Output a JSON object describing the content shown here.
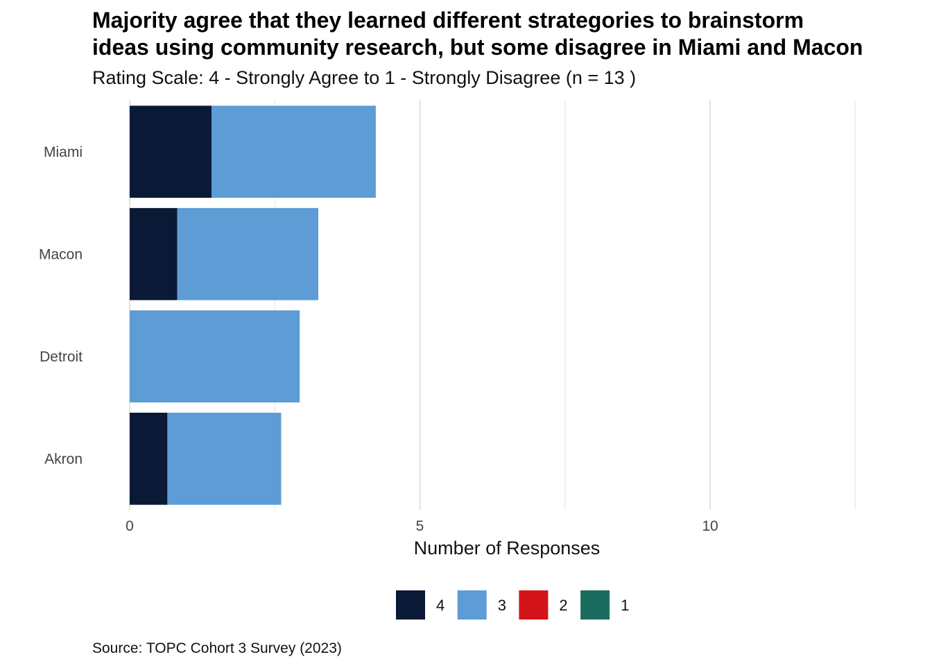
{
  "chart_data": {
    "type": "bar",
    "orientation": "horizontal",
    "stacked": true,
    "title_lines": [
      "Majority agree that they learned different strategories to brainstorm",
      "ideas using community research, but some disagree in Miami and Macon"
    ],
    "subtitle": "Rating Scale: 4 - Strongly Agree to 1 - Strongly Disagree (n = 13 )",
    "xlabel": "Number of Responses",
    "ylabel": "",
    "caption": "Source: TOPC Cohort 3 Survey (2023)",
    "categories": [
      "Miami",
      "Macon",
      "Detroit",
      "Akron"
    ],
    "series": [
      {
        "name": "4",
        "color": "#0a1936",
        "values": [
          1.41,
          0.82,
          0,
          0.65
        ]
      },
      {
        "name": "3",
        "color": "#5e9cd5",
        "values": [
          2.83,
          2.43,
          2.93,
          1.96
        ]
      },
      {
        "name": "2",
        "color": "#d31317",
        "values": [
          0,
          0,
          0,
          0
        ]
      },
      {
        "name": "1",
        "color": "#1b6b5f",
        "values": [
          0,
          0,
          0,
          0
        ]
      }
    ],
    "xlim": [
      0,
      12.5
    ],
    "x_ticks": [
      0,
      5,
      10
    ],
    "x_tick_labels": [
      "0",
      "5",
      "10"
    ],
    "grid": true,
    "legend": "bottom"
  }
}
